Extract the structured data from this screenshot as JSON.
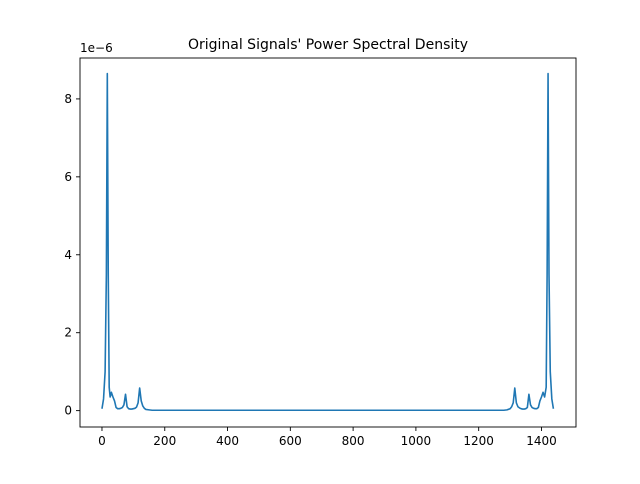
{
  "chart_data": {
    "type": "line",
    "title": "Original Signals' Power Spectral Density",
    "xlabel": "",
    "ylabel": "",
    "y_offset_text": "1e−6",
    "xlim": [
      -70,
      1510
    ],
    "ylim": [
      -0.42,
      9.05
    ],
    "x_ticks": [
      0,
      200,
      400,
      600,
      800,
      1000,
      1200,
      1400
    ],
    "x_tick_labels": [
      "0",
      "200",
      "400",
      "600",
      "800",
      "1000",
      "1200",
      "1400"
    ],
    "y_ticks": [
      0,
      2,
      4,
      6,
      8
    ],
    "y_tick_labels": [
      "0",
      "2",
      "4",
      "6",
      "8"
    ],
    "grid": false,
    "line_color": "#1f77b4",
    "series": [
      {
        "values_unit": "1e-6",
        "x": [
          0,
          5,
          10,
          14,
          17,
          20,
          23,
          26,
          30,
          35,
          40,
          45,
          50,
          55,
          60,
          65,
          70,
          75,
          80,
          85,
          90,
          95,
          100,
          105,
          110,
          115,
          120,
          125,
          130,
          135,
          140,
          150,
          160,
          200,
          400,
          600,
          800,
          1000,
          1200,
          1280,
          1290,
          1300,
          1305,
          1310,
          1315,
          1320,
          1325,
          1330,
          1335,
          1340,
          1345,
          1350,
          1355,
          1360,
          1365,
          1370,
          1375,
          1380,
          1385,
          1390,
          1395,
          1400,
          1405,
          1410,
          1415,
          1418,
          1421,
          1424,
          1428,
          1433,
          1438
        ],
        "y": [
          0.05,
          0.3,
          1.0,
          3.5,
          8.65,
          3.5,
          0.6,
          0.35,
          0.47,
          0.35,
          0.25,
          0.08,
          0.05,
          0.05,
          0.06,
          0.08,
          0.15,
          0.42,
          0.1,
          0.05,
          0.04,
          0.04,
          0.05,
          0.06,
          0.09,
          0.2,
          0.58,
          0.25,
          0.12,
          0.06,
          0.03,
          0.02,
          0.01,
          0.01,
          0.01,
          0.01,
          0.01,
          0.01,
          0.01,
          0.01,
          0.02,
          0.05,
          0.1,
          0.2,
          0.58,
          0.2,
          0.1,
          0.07,
          0.05,
          0.04,
          0.04,
          0.05,
          0.08,
          0.42,
          0.15,
          0.08,
          0.06,
          0.05,
          0.05,
          0.08,
          0.25,
          0.35,
          0.47,
          0.35,
          0.6,
          3.5,
          8.65,
          3.5,
          1.0,
          0.3,
          0.05
        ]
      }
    ]
  }
}
